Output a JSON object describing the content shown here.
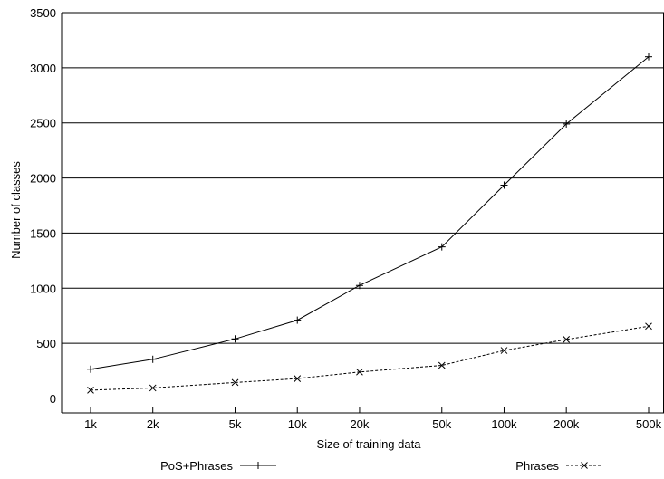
{
  "chart_data": {
    "type": "line",
    "xlabel": "Size of training data",
    "ylabel": "Number of classes",
    "x_scale": "log",
    "ylim": [
      0,
      3500
    ],
    "yticks": [
      0,
      500,
      1000,
      1500,
      2000,
      2500,
      3000,
      3500
    ],
    "grid": "horizontal",
    "legend_position": "bottom",
    "categories": [
      "1k",
      "2k",
      "5k",
      "10k",
      "20k",
      "50k",
      "100k",
      "200k",
      "500k"
    ],
    "x": [
      1000,
      2000,
      5000,
      10000,
      20000,
      50000,
      100000,
      200000,
      500000
    ],
    "series": [
      {
        "name": "PoS+Phrases",
        "marker": "plus",
        "line": "solid",
        "values": [
          265,
          355,
          540,
          710,
          1025,
          1375,
          1935,
          2490,
          3100
        ]
      },
      {
        "name": "Phrases",
        "marker": "cross",
        "line": "dashed",
        "values": [
          75,
          95,
          145,
          180,
          240,
          300,
          435,
          535,
          655
        ]
      }
    ]
  }
}
